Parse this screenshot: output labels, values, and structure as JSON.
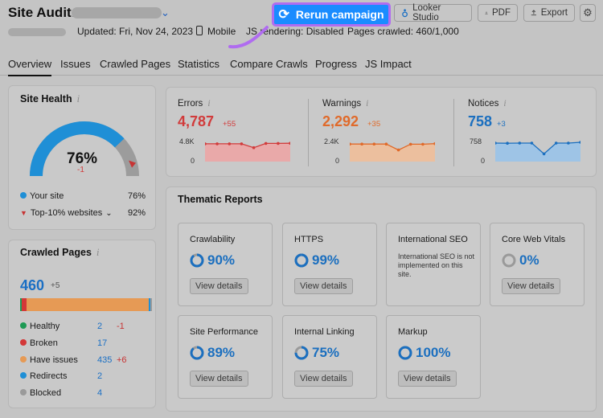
{
  "header": {
    "title": "Site Audit:",
    "updated": "Updated: Fri, Nov 24, 2023",
    "device": "Mobile",
    "js_rendering": "JS rendering: Disabled",
    "pages_crawled": "Pages crawled: 460/1,000",
    "rerun_label": "Rerun campaign",
    "looker_label": "Looker Studio",
    "pdf_label": "PDF",
    "export_label": "Export",
    "accent": "#1a8cff"
  },
  "tabs": [
    "Overview",
    "Issues",
    "Crawled Pages",
    "Statistics",
    "Compare Crawls",
    "Progress",
    "JS Impact"
  ],
  "site_health": {
    "title": "Site Health",
    "info": "i",
    "score": "76%",
    "score_value": 76,
    "delta": "-1",
    "legend": [
      {
        "label": "Your site",
        "value": "76%"
      },
      {
        "label": "Top-10% websites",
        "value": "92%"
      }
    ]
  },
  "crawled_pages": {
    "title": "Crawled Pages",
    "info": "i",
    "total": "460",
    "total_delta": "+5",
    "rows": [
      {
        "label": "Healthy",
        "value": "2",
        "change": "-1",
        "color": "#1e9a55"
      },
      {
        "label": "Broken",
        "value": "17",
        "change": "",
        "color": "#d33838"
      },
      {
        "label": "Have issues",
        "value": "435",
        "change": "+6",
        "color": "#e69a55"
      },
      {
        "label": "Redirects",
        "value": "2",
        "change": "",
        "color": "#1f8fd6"
      },
      {
        "label": "Blocked",
        "value": "4",
        "change": "",
        "color": "#9a9a9a"
      }
    ]
  },
  "metrics": [
    {
      "label": "Errors",
      "value": "4,787",
      "delta": "+55",
      "axis_top": "4.8K",
      "axis_bottom": "0",
      "color": "#d13b3b",
      "fill": "#e9a9a9"
    },
    {
      "label": "Warnings",
      "value": "2,292",
      "delta": "+35",
      "axis_top": "2.4K",
      "axis_bottom": "0",
      "color": "#e06a2a",
      "fill": "#ecbf9e"
    },
    {
      "label": "Notices",
      "value": "758",
      "delta": "+3",
      "axis_top": "758",
      "axis_bottom": "0",
      "color": "#1b6fbf",
      "fill": "#9ec4e6"
    }
  ],
  "thematic": {
    "title": "Thematic Reports",
    "reports": [
      {
        "name": "Crawlability",
        "value": "90%",
        "percent": 90,
        "button": "View details"
      },
      {
        "name": "HTTPS",
        "value": "99%",
        "percent": 99,
        "button": "View details"
      },
      {
        "name": "International SEO",
        "note": "International SEO is not implemented on this site."
      },
      {
        "name": "Core Web Vitals",
        "value": "0%",
        "percent": 0,
        "button": "View details"
      },
      {
        "name": "Site Performance",
        "value": "89%",
        "percent": 89,
        "button": "View details"
      },
      {
        "name": "Internal Linking",
        "value": "75%",
        "percent": 75,
        "button": "View details"
      },
      {
        "name": "Markup",
        "value": "100%",
        "percent": 100,
        "button": "View details"
      }
    ]
  }
}
